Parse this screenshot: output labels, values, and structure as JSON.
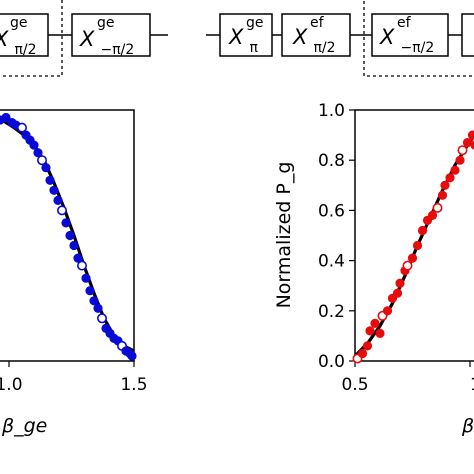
{
  "colors": {
    "left_points": "#0a0ad6",
    "right_points": "#e80b0b",
    "fit_curve": "#000000",
    "frame": "#000000"
  },
  "top_circuit_left": {
    "gates": [
      {
        "base": "X",
        "sup": "ge",
        "sub": "π/2"
      },
      {
        "base": "X",
        "sup": "ge",
        "sub": "−π/2"
      }
    ]
  },
  "top_circuit_right": {
    "gates": [
      {
        "base": "X",
        "sup": "ge",
        "sub": "π"
      },
      {
        "base": "X",
        "sup": "ef",
        "sub": "π/2"
      },
      {
        "base": "X",
        "sup": "ef",
        "sub": "−π/2"
      }
    ]
  },
  "chart_data": [
    {
      "type": "scatter",
      "title": "",
      "xlabel": "β_ge",
      "ylabel": "",
      "xlim": [
        0.78,
        1.5
      ],
      "ylim": [
        0.0,
        1.0
      ],
      "x_ticks": [
        "1.0",
        "1.5"
      ],
      "marker_color": "#0a0ad6",
      "series": [
        {
          "points": [
            [
              0.8,
              0.955
            ],
            [
              0.83,
              0.96
            ],
            [
              0.86,
              0.97
            ],
            [
              0.89,
              0.95
            ],
            [
              0.91,
              0.94
            ],
            [
              0.94,
              0.93
            ],
            [
              0.96,
              0.9
            ],
            [
              0.98,
              0.88
            ],
            [
              1.0,
              0.86
            ],
            [
              1.02,
              0.83
            ],
            [
              1.04,
              0.8
            ],
            [
              1.06,
              0.77
            ],
            [
              1.08,
              0.72
            ],
            [
              1.1,
              0.68
            ],
            [
              1.12,
              0.64
            ],
            [
              1.14,
              0.6
            ],
            [
              1.16,
              0.55
            ],
            [
              1.18,
              0.5
            ],
            [
              1.2,
              0.46
            ],
            [
              1.22,
              0.41
            ],
            [
              1.24,
              0.38
            ],
            [
              1.26,
              0.33
            ],
            [
              1.28,
              0.28
            ],
            [
              1.3,
              0.24
            ],
            [
              1.32,
              0.21
            ],
            [
              1.34,
              0.17
            ],
            [
              1.36,
              0.13
            ],
            [
              1.38,
              0.11
            ],
            [
              1.4,
              0.09
            ],
            [
              1.42,
              0.08
            ],
            [
              1.44,
              0.06
            ],
            [
              1.46,
              0.04
            ],
            [
              1.48,
              0.03
            ],
            [
              1.49,
              0.02
            ]
          ]
        }
      ],
      "fit": [
        [
          0.78,
          0.98
        ],
        [
          0.85,
          0.955
        ],
        [
          0.9,
          0.93
        ],
        [
          0.95,
          0.9
        ],
        [
          1.0,
          0.86
        ],
        [
          1.05,
          0.8
        ],
        [
          1.1,
          0.71
        ],
        [
          1.15,
          0.61
        ],
        [
          1.2,
          0.5
        ],
        [
          1.25,
          0.38
        ],
        [
          1.3,
          0.27
        ],
        [
          1.35,
          0.17
        ],
        [
          1.4,
          0.1
        ],
        [
          1.45,
          0.06
        ],
        [
          1.5,
          0.04
        ]
      ]
    },
    {
      "type": "scatter",
      "title": "",
      "xlabel": "β",
      "ylabel": "Normalized P_g",
      "xlim": [
        0.5,
        1.02
      ],
      "ylim": [
        0.0,
        1.0
      ],
      "x_ticks": [
        "0.5",
        "1"
      ],
      "y_ticks": [
        "0.0",
        "0.2",
        "0.4",
        "0.6",
        "0.8",
        "1.0"
      ],
      "marker_color": "#e80b0b",
      "series": [
        {
          "points": [
            [
              0.51,
              0.01
            ],
            [
              0.53,
              0.03
            ],
            [
              0.55,
              0.06
            ],
            [
              0.56,
              0.12
            ],
            [
              0.58,
              0.15
            ],
            [
              0.6,
              0.11
            ],
            [
              0.61,
              0.18
            ],
            [
              0.63,
              0.2
            ],
            [
              0.65,
              0.25
            ],
            [
              0.67,
              0.27
            ],
            [
              0.68,
              0.31
            ],
            [
              0.7,
              0.36
            ],
            [
              0.71,
              0.38
            ],
            [
              0.73,
              0.41
            ],
            [
              0.75,
              0.46
            ],
            [
              0.77,
              0.52
            ],
            [
              0.79,
              0.56
            ],
            [
              0.81,
              0.58
            ],
            [
              0.83,
              0.61
            ],
            [
              0.85,
              0.66
            ],
            [
              0.86,
              0.7
            ],
            [
              0.88,
              0.73
            ],
            [
              0.9,
              0.76
            ],
            [
              0.92,
              0.8
            ],
            [
              0.93,
              0.84
            ],
            [
              0.95,
              0.87
            ],
            [
              0.97,
              0.9
            ],
            [
              0.98,
              0.86
            ],
            [
              1.0,
              0.92
            ],
            [
              1.01,
              0.95
            ]
          ]
        }
      ],
      "fit": [
        [
          0.5,
          0.02
        ],
        [
          0.55,
          0.07
        ],
        [
          0.6,
          0.14
        ],
        [
          0.65,
          0.23
        ],
        [
          0.7,
          0.34
        ],
        [
          0.75,
          0.46
        ],
        [
          0.8,
          0.57
        ],
        [
          0.85,
          0.68
        ],
        [
          0.9,
          0.78
        ],
        [
          0.95,
          0.86
        ],
        [
          1.0,
          0.93
        ],
        [
          1.02,
          0.95
        ]
      ]
    }
  ]
}
